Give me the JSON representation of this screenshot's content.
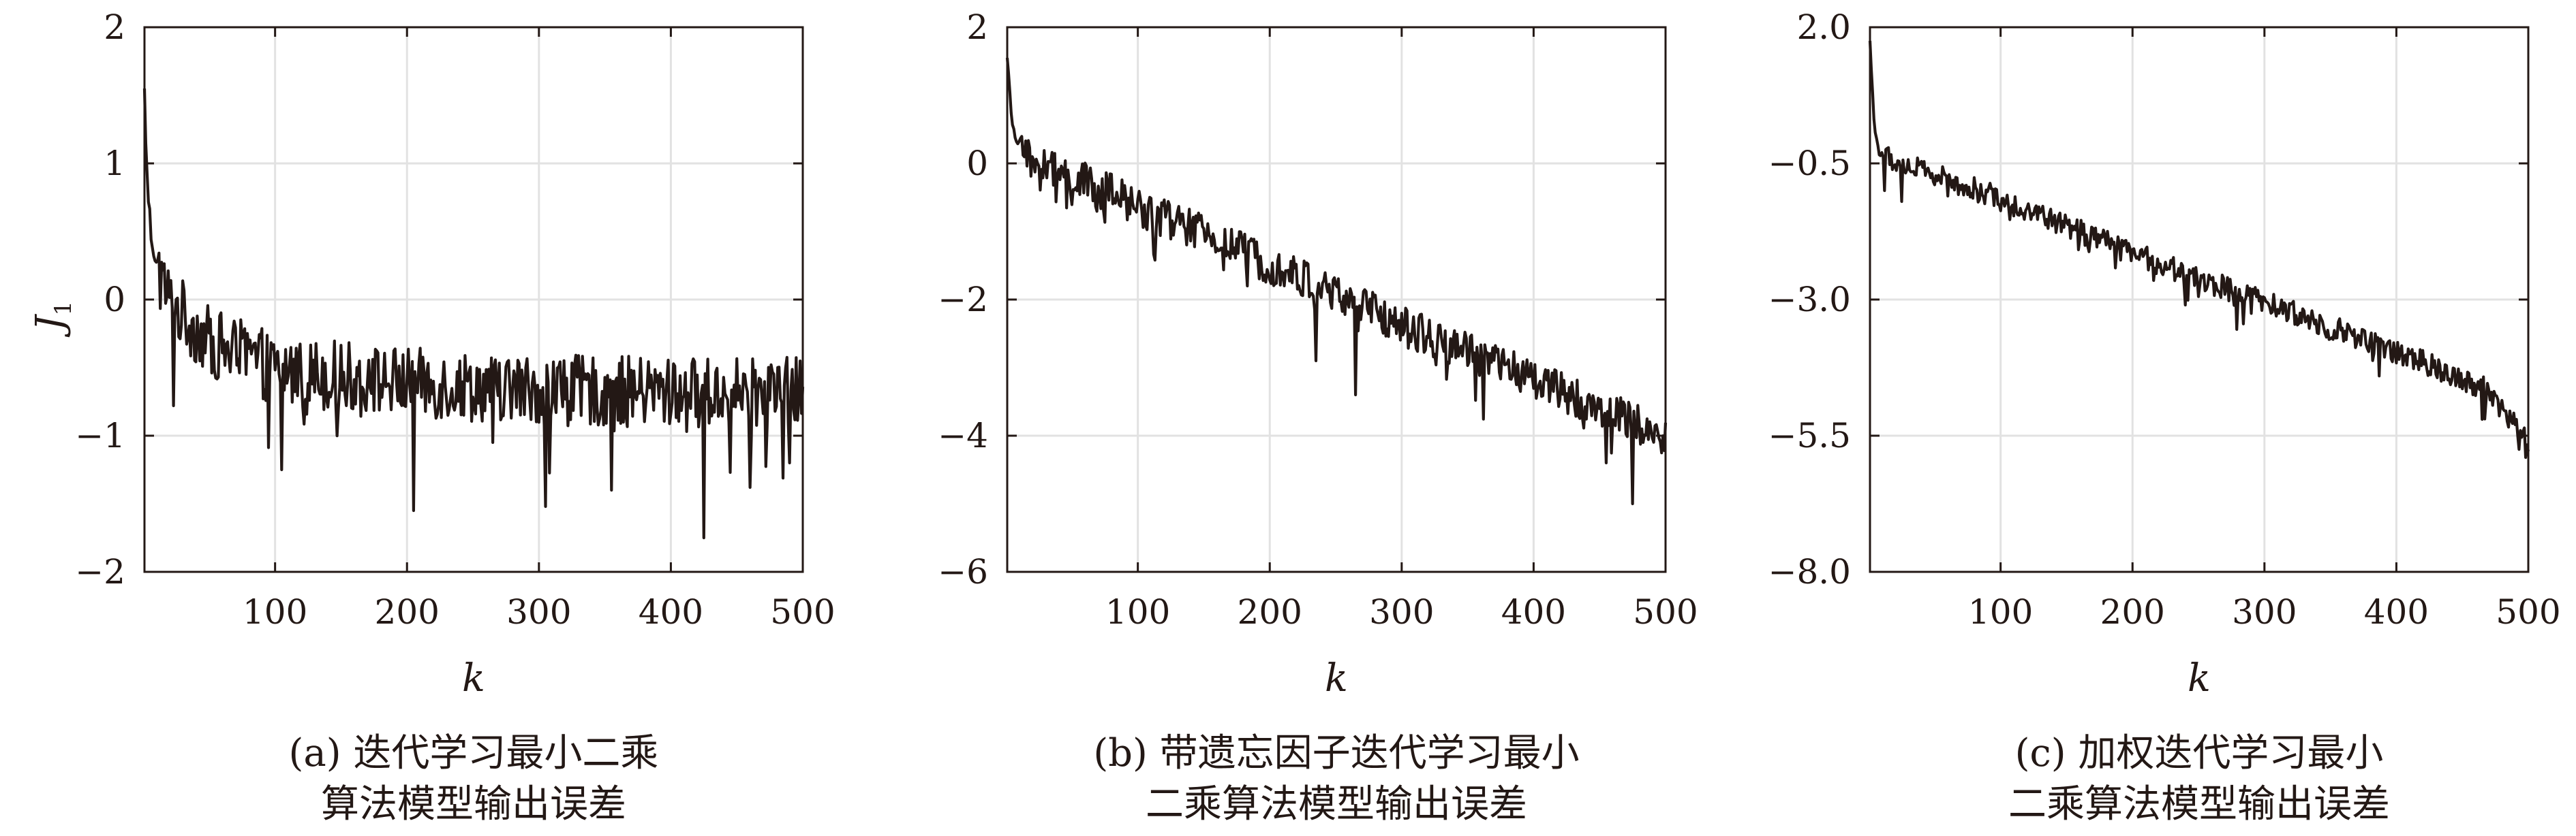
{
  "chart_data": [
    {
      "type": "line",
      "caption": [
        "(a) 迭代学习最小二乘",
        "算法模型输出误差"
      ],
      "xlabel": "k",
      "ylabel": "J",
      "ylabel_sub": "1",
      "xlim": [
        1,
        500
      ],
      "ylim": [
        -2,
        2
      ],
      "xticks": [
        100,
        200,
        300,
        400,
        500
      ],
      "yticks": [
        -2,
        -1,
        0,
        1,
        2
      ],
      "ytick_labels": [
        "−2",
        "−1",
        "0",
        "1",
        "2"
      ],
      "grid": true,
      "color": "#231815",
      "series": [
        {
          "start": 1.55,
          "mid_k": 100,
          "mid": -0.45,
          "end": -0.62,
          "noise": 0.26,
          "spikes": [
            [
              23,
              -0.78
            ],
            [
              105,
              -1.25
            ],
            [
              205,
              -1.55
            ],
            [
              265,
              -1.05
            ],
            [
              305,
              -1.52
            ],
            [
              355,
              -1.4
            ],
            [
              425,
              -1.75
            ],
            [
              460,
              -1.38
            ],
            [
              490,
              -1.2
            ]
          ],
          "x": [
            1,
            3,
            6,
            10,
            20,
            50,
            100,
            200,
            300,
            400,
            500
          ],
          "y": [
            1.55,
            0.9,
            0.5,
            0.3,
            0.05,
            -0.25,
            -0.45,
            -0.55,
            -0.6,
            -0.62,
            -0.62
          ]
        }
      ]
    },
    {
      "type": "line",
      "caption": [
        "(b) 带遗忘因子迭代学习最小",
        "二乘算法模型输出误差"
      ],
      "xlabel": "k",
      "ylabel": "",
      "xlim": [
        1,
        500
      ],
      "ylim": [
        -6,
        2
      ],
      "xticks": [
        100,
        200,
        300,
        400,
        500
      ],
      "yticks": [
        -6,
        -4,
        -2,
        0,
        2
      ],
      "ytick_labels": [
        "−6",
        "−4",
        "−2",
        "0",
        "2"
      ],
      "grid": true,
      "color": "#231815",
      "series": [
        {
          "start": 1.55,
          "mid_k": 15,
          "mid": 0.15,
          "end": -3.95,
          "noise": 0.3,
          "spikes": [
            [
              235,
              -2.9
            ],
            [
              265,
              -3.4
            ],
            [
              455,
              -4.4
            ],
            [
              475,
              -5.0
            ]
          ],
          "x": [
            1,
            5,
            15,
            100,
            200,
            300,
            400,
            500
          ],
          "y": [
            1.55,
            0.5,
            0.15,
            -0.55,
            -1.4,
            -2.3,
            -3.1,
            -3.95
          ]
        }
      ]
    },
    {
      "type": "line",
      "caption": [
        "(c) 加权迭代学习最小",
        "二乘算法模型输出误差"
      ],
      "xlabel": "k",
      "ylabel": "",
      "xlim": [
        1,
        500
      ],
      "ylim": [
        -8,
        2
      ],
      "xticks": [
        100,
        200,
        300,
        400,
        500
      ],
      "yticks": [
        -8,
        -5.5,
        -3,
        -0.5,
        2
      ],
      "ytick_labels": [
        "−8.0",
        "−5.5",
        "−3.0",
        "−0.5",
        "2.0"
      ],
      "grid": true,
      "color": "#231815",
      "series": [
        {
          "start": 1.75,
          "mid_k": 8,
          "mid": -0.3,
          "end": -5.6,
          "noise": 0.22,
          "spikes": [
            [
              12,
              -1.0
            ],
            [
              25,
              -1.2
            ],
            [
              60,
              -1.1
            ],
            [
              240,
              -3.1
            ],
            [
              465,
              -5.2
            ],
            [
              498,
              -5.9
            ]
          ],
          "x": [
            1,
            4,
            8,
            100,
            200,
            300,
            400,
            470,
            500
          ],
          "y": [
            1.75,
            0.3,
            -0.3,
            -1.1,
            -2.1,
            -3.0,
            -3.9,
            -4.6,
            -5.6
          ]
        }
      ]
    }
  ]
}
